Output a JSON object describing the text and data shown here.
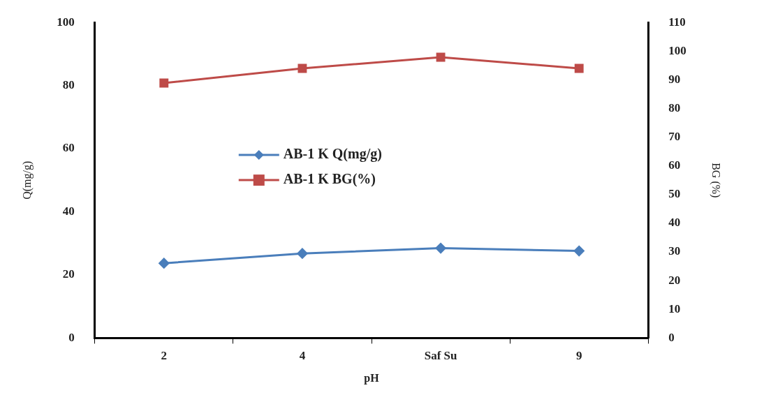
{
  "chart_data": {
    "type": "line",
    "xlabel": "pH",
    "ylabel": "Q(mg/g)",
    "y2label": "BG (%)",
    "categories": [
      "2",
      "4",
      "Saf Su",
      "9"
    ],
    "series": [
      {
        "name": "AB-1 K Q(mg/g)",
        "color": "#4a7ebb",
        "values": [
          23.7,
          26.8,
          28.5,
          27.6
        ],
        "marker": "diamond"
      },
      {
        "name": "AB-1 K BG(%)",
        "color": "#be4b48",
        "values": [
          88.9,
          94.0,
          97.9,
          94.0
        ],
        "axis": "y2",
        "marker": "square"
      }
    ],
    "ylim": [
      0,
      100
    ],
    "yticks": [
      0,
      20,
      40,
      60,
      80,
      100
    ],
    "y2lim": [
      0,
      110
    ],
    "y2ticks": [
      0,
      10,
      20,
      30,
      40,
      50,
      60,
      70,
      80,
      90,
      100,
      110
    ],
    "grid": false,
    "legend": "center",
    "line_style": "solid"
  }
}
